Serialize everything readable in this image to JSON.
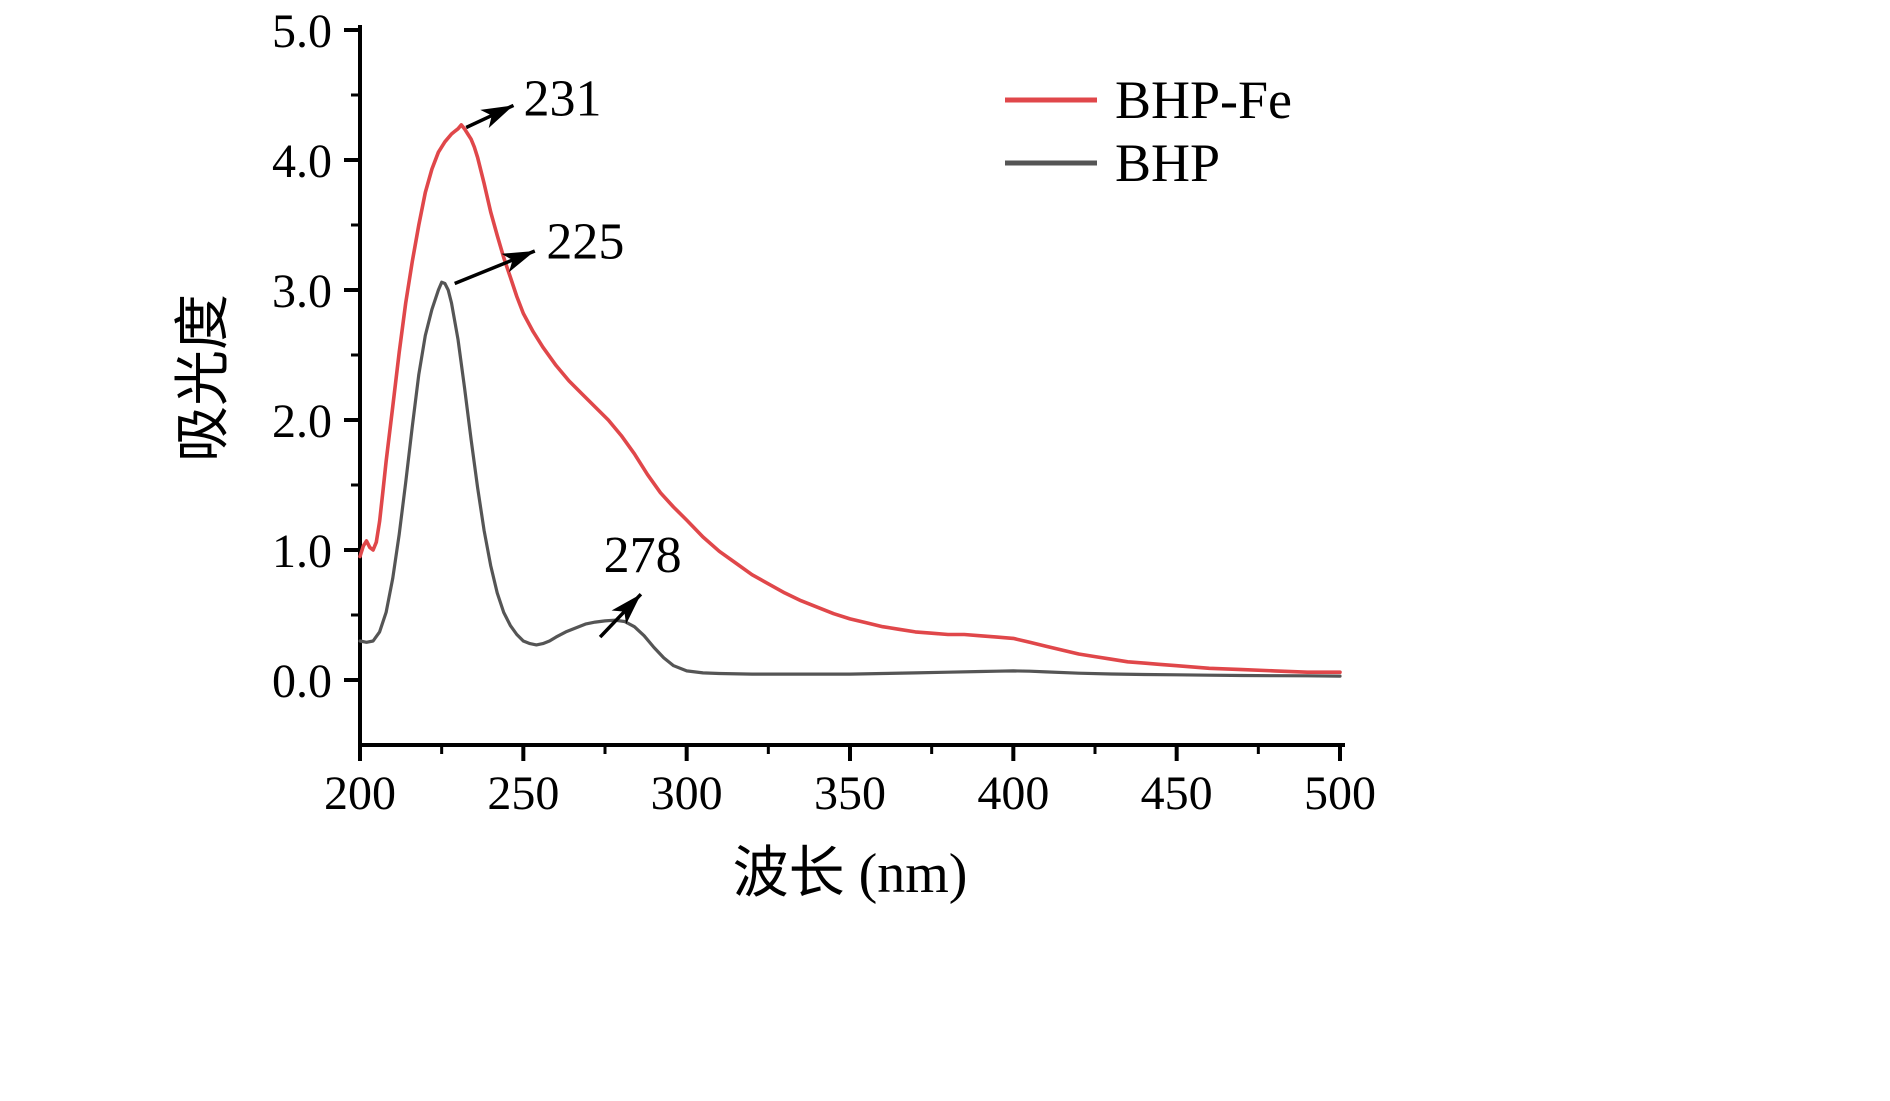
{
  "chart_data": {
    "type": "line",
    "title": "",
    "xlabel": "波长 (nm)",
    "ylabel": "吸光度",
    "xlim": [
      200,
      500
    ],
    "ylim": [
      -0.5,
      5.0
    ],
    "grid": false,
    "axis_color": "#000000",
    "x_ticks": {
      "values": [
        200,
        250,
        300,
        350,
        400,
        450,
        500
      ],
      "labels": [
        "200",
        "250",
        "300",
        "350",
        "400",
        "450",
        "500"
      ]
    },
    "y_ticks": {
      "values": [
        0,
        1,
        2,
        3,
        4,
        5
      ],
      "labels": [
        "0.0",
        "1.0",
        "2.0",
        "3.0",
        "4.0",
        "5.0"
      ]
    },
    "x_minor_ticks": [
      225,
      275,
      325,
      375,
      425,
      475
    ],
    "y_minor_ticks": [
      0.5,
      1.5,
      2.5,
      3.5,
      4.5
    ],
    "legend": {
      "position": "top-right"
    },
    "series": [
      {
        "name": "BHP-Fe",
        "color": "#e0474a",
        "width": 3.6,
        "x": [
          200,
          201,
          202,
          203,
          204,
          205,
          206,
          207,
          208,
          210,
          212,
          214,
          216,
          218,
          220,
          222,
          224,
          226,
          228,
          229,
          230,
          231,
          232,
          233,
          234,
          235,
          236,
          238,
          240,
          242,
          244,
          246,
          248,
          250,
          253,
          256,
          260,
          264,
          268,
          272,
          276,
          280,
          284,
          288,
          292,
          296,
          300,
          305,
          310,
          315,
          320,
          325,
          330,
          335,
          340,
          345,
          350,
          355,
          360,
          365,
          370,
          375,
          380,
          385,
          390,
          395,
          400,
          405,
          410,
          415,
          420,
          425,
          430,
          435,
          440,
          445,
          450,
          460,
          470,
          480,
          490,
          500
        ],
        "y": [
          0.95,
          1.03,
          1.07,
          1.02,
          1.0,
          1.06,
          1.22,
          1.45,
          1.68,
          2.1,
          2.52,
          2.9,
          3.22,
          3.5,
          3.75,
          3.93,
          4.06,
          4.14,
          4.2,
          4.22,
          4.24,
          4.27,
          4.24,
          4.2,
          4.16,
          4.1,
          4.02,
          3.82,
          3.6,
          3.42,
          3.25,
          3.1,
          2.95,
          2.82,
          2.68,
          2.56,
          2.42,
          2.3,
          2.2,
          2.1,
          2.0,
          1.88,
          1.74,
          1.58,
          1.44,
          1.33,
          1.23,
          1.1,
          0.99,
          0.9,
          0.81,
          0.74,
          0.67,
          0.61,
          0.56,
          0.51,
          0.47,
          0.44,
          0.41,
          0.39,
          0.37,
          0.36,
          0.35,
          0.35,
          0.34,
          0.33,
          0.32,
          0.29,
          0.26,
          0.23,
          0.2,
          0.18,
          0.16,
          0.14,
          0.13,
          0.12,
          0.11,
          0.09,
          0.08,
          0.07,
          0.06,
          0.06
        ]
      },
      {
        "name": "BHP",
        "color": "#555555",
        "width": 3.2,
        "x": [
          200,
          202,
          204,
          206,
          208,
          210,
          212,
          214,
          216,
          218,
          220,
          222,
          224,
          225,
          226,
          227,
          228,
          230,
          232,
          234,
          236,
          238,
          240,
          242,
          244,
          246,
          248,
          250,
          252,
          254,
          256,
          258,
          260,
          263,
          266,
          269,
          272,
          275,
          278,
          281,
          284,
          287,
          290,
          293,
          296,
          300,
          305,
          310,
          320,
          330,
          340,
          350,
          360,
          370,
          380,
          390,
          395,
          400,
          405,
          410,
          420,
          430,
          440,
          450,
          460,
          470,
          480,
          490,
          500
        ],
        "y": [
          0.3,
          0.29,
          0.3,
          0.37,
          0.52,
          0.78,
          1.12,
          1.52,
          1.95,
          2.35,
          2.65,
          2.85,
          3.0,
          3.06,
          3.05,
          3.0,
          2.9,
          2.62,
          2.25,
          1.85,
          1.48,
          1.15,
          0.88,
          0.67,
          0.52,
          0.42,
          0.35,
          0.3,
          0.28,
          0.27,
          0.28,
          0.3,
          0.33,
          0.37,
          0.4,
          0.43,
          0.445,
          0.455,
          0.46,
          0.45,
          0.41,
          0.34,
          0.25,
          0.17,
          0.11,
          0.07,
          0.055,
          0.05,
          0.045,
          0.045,
          0.045,
          0.045,
          0.05,
          0.055,
          0.06,
          0.065,
          0.068,
          0.07,
          0.068,
          0.062,
          0.052,
          0.046,
          0.042,
          0.04,
          0.037,
          0.035,
          0.033,
          0.032,
          0.03
        ]
      }
    ],
    "annotations": [
      {
        "label": "231",
        "text_at": [
          262,
          4.48
        ],
        "arrow_from": [
          232.5,
          4.25
        ],
        "arrow_to": [
          247,
          4.42
        ]
      },
      {
        "label": "225",
        "text_at": [
          269,
          3.38
        ],
        "arrow_from": [
          229,
          3.05
        ],
        "arrow_to": [
          253.5,
          3.3
        ]
      },
      {
        "label": "278",
        "text_at": [
          286.5,
          0.97
        ],
        "arrow_from": [
          273.5,
          0.33
        ],
        "arrow_to": [
          286,
          0.66
        ]
      }
    ]
  }
}
